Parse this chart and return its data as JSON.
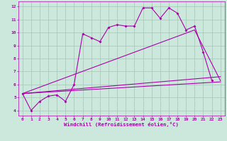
{
  "xlabel": "Windchill (Refroidissement éolien,°C)",
  "background_color": "#cce8dd",
  "line_color": "#aa00aa",
  "grid_color": "#aaccbb",
  "xlim": [
    -0.5,
    23.5
  ],
  "ylim": [
    3.6,
    12.4
  ],
  "xticks": [
    0,
    1,
    2,
    3,
    4,
    5,
    6,
    7,
    8,
    9,
    10,
    11,
    12,
    13,
    14,
    15,
    16,
    17,
    18,
    19,
    20,
    21,
    22,
    23
  ],
  "yticks": [
    4,
    5,
    6,
    7,
    8,
    9,
    10,
    11,
    12
  ],
  "main_x": [
    0,
    1,
    2,
    3,
    4,
    5,
    6,
    7,
    8,
    9,
    10,
    11,
    12,
    13,
    14,
    15,
    16,
    17,
    18,
    19,
    20,
    21,
    22
  ],
  "main_y": [
    5.3,
    4.0,
    4.7,
    5.1,
    5.2,
    4.7,
    6.0,
    9.9,
    9.6,
    9.3,
    10.4,
    10.6,
    10.5,
    10.5,
    11.9,
    11.9,
    11.1,
    11.9,
    11.5,
    10.2,
    10.5,
    8.5,
    6.3
  ],
  "line1_x": [
    0,
    23
  ],
  "line1_y": [
    5.3,
    6.2
  ],
  "line2_x": [
    0,
    23
  ],
  "line2_y": [
    5.3,
    6.6
  ],
  "line3_x": [
    0,
    20,
    23
  ],
  "line3_y": [
    5.3,
    10.2,
    6.3
  ],
  "markersize": 2.0,
  "linewidth": 0.8
}
